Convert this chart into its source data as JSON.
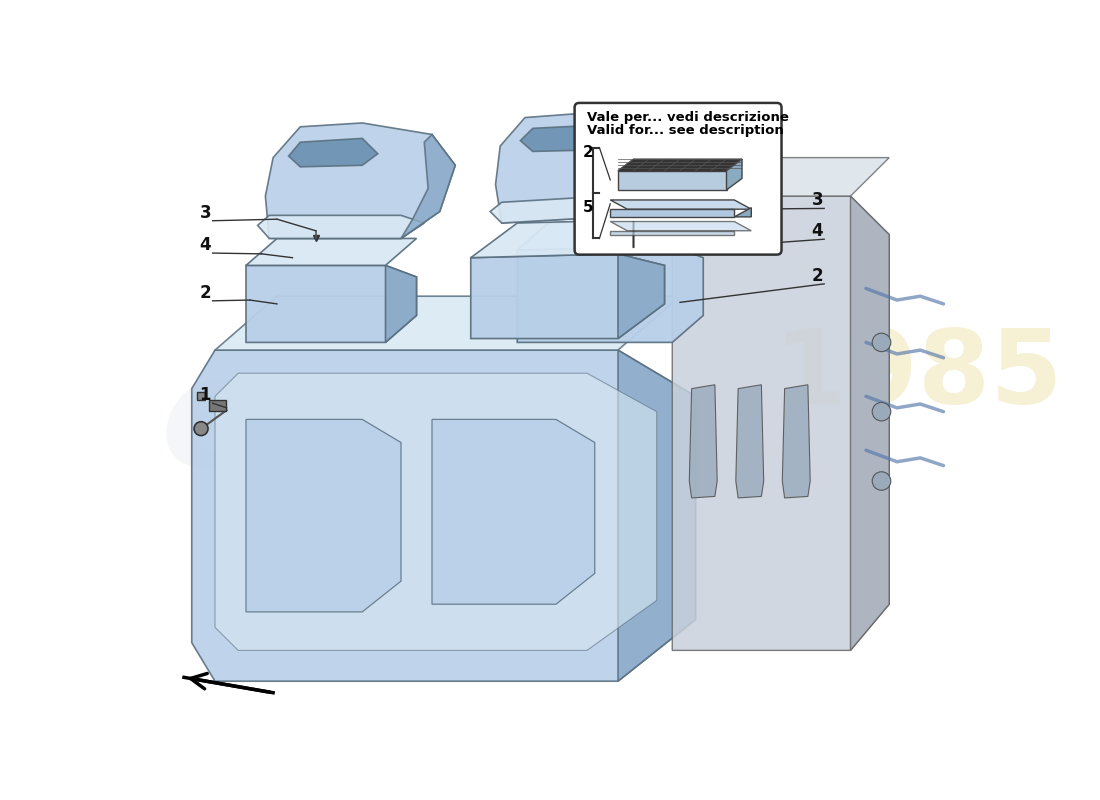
{
  "background_color": "#ffffff",
  "callout_text_line1": "Vale per... vedi descrizione",
  "callout_text_line2": "Valid for... see description",
  "part_color_main": "#b8cfe8",
  "part_color_dark": "#8aaac8",
  "part_color_light": "#d8e8f4",
  "part_color_darker": "#6a90b0",
  "engine_color": "#c0c8d8",
  "outline_color": "#5a7080",
  "watermark_color1": "#d0d8e4",
  "watermark_color2": "#c8d4dc",
  "watermark_year_color": "#d4b830",
  "label_color": "#111111",
  "arrow_color": "#222222",
  "callout_edge_color": "#444444",
  "lw": 1.2,
  "fig_width": 11.0,
  "fig_height": 8.0,
  "dpi": 100
}
